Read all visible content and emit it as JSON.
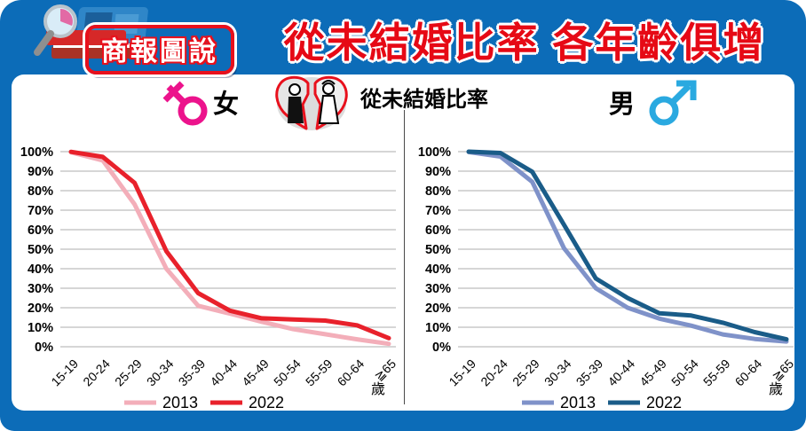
{
  "header": {
    "badge_label": "商報圖說",
    "title": "從未結婚比率 各年齡俱增",
    "colors": {
      "header_blue": "#0c6cb8",
      "title_red": "#e60915",
      "badge_red": "#e8101c"
    }
  },
  "subheader": {
    "female_label": "女",
    "center_label": "從未結婚比率",
    "male_label": "男",
    "female_symbol_color": "#ec138c",
    "male_symbol_color": "#2aa9e0"
  },
  "chart_data": [
    {
      "id": "female-never-married",
      "type": "line",
      "title": "女 從未結婚比率",
      "categories": [
        "15-19",
        "20-24",
        "25-29",
        "30-34",
        "35-39",
        "40-44",
        "45-49",
        "50-54",
        "55-59",
        "60-64",
        "≧65"
      ],
      "x_unit": "歲",
      "yticks": [
        "100%",
        "90%",
        "80%",
        "70%",
        "60%",
        "50%",
        "40%",
        "30%",
        "20%",
        "10%",
        "0%"
      ],
      "ylim": [
        0,
        100
      ],
      "grid": true,
      "legend_position": "bottom",
      "series": [
        {
          "name": "2013",
          "color": "#f3aeb9",
          "values": [
            99.7,
            95.5,
            73.0,
            40.0,
            21.0,
            17.0,
            12.8,
            9.0,
            6.4,
            3.8,
            1.5
          ]
        },
        {
          "name": "2022",
          "color": "#e8212b",
          "values": [
            99.9,
            97.3,
            84.0,
            49.0,
            27.5,
            18.5,
            14.6,
            14.0,
            13.4,
            11.0,
            4.4
          ]
        }
      ]
    },
    {
      "id": "male-never-married",
      "type": "line",
      "title": "男 從未結婚比率",
      "categories": [
        "15-19",
        "20-24",
        "25-29",
        "30-34",
        "35-39",
        "40-44",
        "45-49",
        "50-54",
        "55-59",
        "60-64",
        "≧65"
      ],
      "x_unit": "歲",
      "yticks": [
        "100%",
        "90%",
        "80%",
        "70%",
        "60%",
        "50%",
        "40%",
        "30%",
        "20%",
        "10%",
        "0%"
      ],
      "ylim": [
        0,
        100
      ],
      "grid": true,
      "legend_position": "bottom",
      "series": [
        {
          "name": "2013",
          "color": "#7f92c9",
          "values": [
            99.8,
            97.5,
            84.5,
            50.5,
            30.0,
            20.0,
            14.4,
            10.8,
            6.3,
            4.0,
            2.7
          ]
        },
        {
          "name": "2022",
          "color": "#1a5c88",
          "values": [
            100.0,
            99.3,
            89.7,
            62.5,
            35.0,
            25.0,
            17.2,
            16.0,
            12.3,
            7.5,
            3.8
          ]
        }
      ]
    }
  ]
}
